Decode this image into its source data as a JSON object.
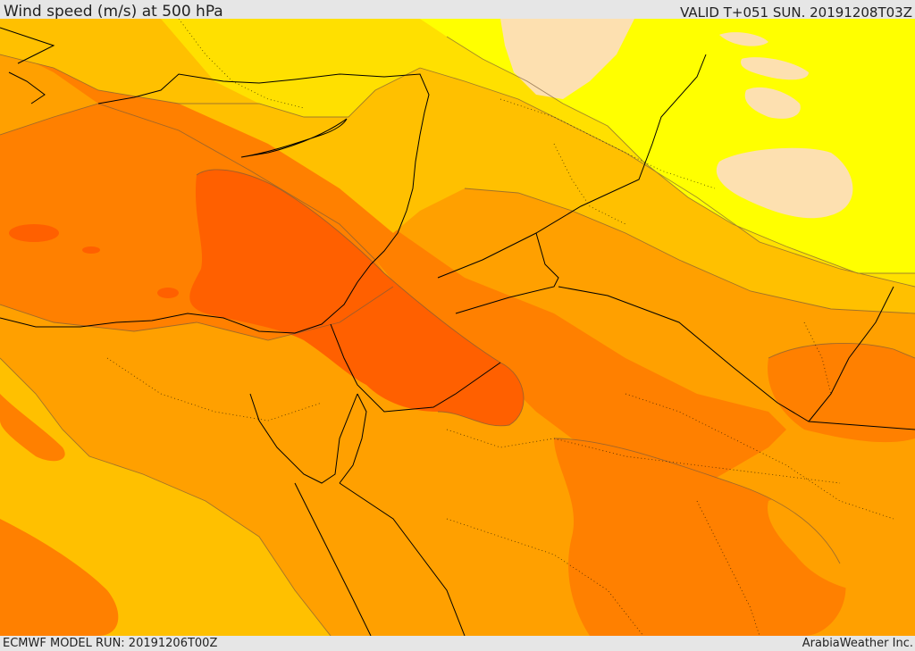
{
  "header": {
    "title": "Wind speed (m/s) at 500 hPa",
    "valid_time": "VALID T+051 SUN. 20191208T03Z"
  },
  "footer": {
    "model_run": "ECMWF MODEL RUN: 20191206T00Z",
    "credit": "ArabiaWeather Inc."
  },
  "map": {
    "colors": {
      "band_1": "#ffff00",
      "band_2": "#ffe000",
      "band_3": "#ffc000",
      "band_4": "#ffa000",
      "band_5": "#ff8000",
      "band_6": "#ff6000",
      "band_light": "#fde0b0"
    }
  }
}
